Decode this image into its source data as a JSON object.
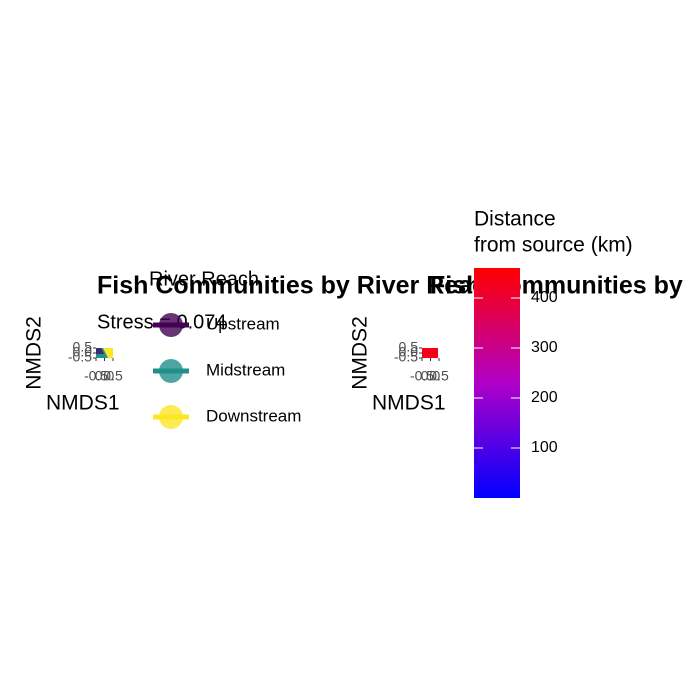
{
  "chart_data": [
    {
      "type": "scatter",
      "title": "Fish Communities by River Reach",
      "subtitle": "Stress = 0.074",
      "x_label": "NMDS1",
      "y_label": "NMDS2",
      "xlim": [
        -0.5,
        0.5
      ],
      "ylim": [
        -0.5,
        0.5
      ],
      "xticks": [
        -0.5,
        {
          "value": 0,
          "label": "0.0"
        },
        0.5
      ],
      "yticks": [
        -0.5,
        {
          "value": 0,
          "label": "0.0"
        },
        0.5
      ],
      "legend": {
        "title": "River Reach",
        "series": [
          {
            "name": "Upstream",
            "color": "#440154"
          },
          {
            "name": "Midstream",
            "color": "#21908C"
          },
          {
            "name": "Downstream",
            "color": "#FDE725"
          }
        ]
      }
    },
    {
      "type": "scatter",
      "title": "Fish Communities by Distance",
      "x_label": "NMDS1",
      "y_label": "NMDS2",
      "xlim": [
        -0.5,
        0.5
      ],
      "ylim": [
        -0.5,
        0.5
      ],
      "xticks": [
        -0.5,
        {
          "value": 0,
          "label": "0.0"
        },
        0.5
      ],
      "yticks": [
        -0.5,
        {
          "value": 0,
          "label": "0.0"
        },
        0.5
      ],
      "colorbar": {
        "title_lines": [
          "Distance",
          "from source (km)"
        ],
        "lim": [
          0,
          460
        ],
        "ticks": [
          100,
          200,
          300,
          400
        ],
        "low_color": "#0000FF",
        "high_color": "#FF0000"
      }
    }
  ]
}
